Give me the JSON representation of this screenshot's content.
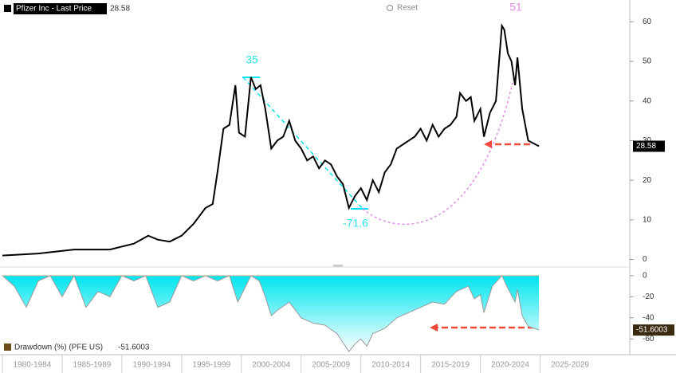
{
  "controls": {
    "reset": "Reset"
  },
  "chart_data": [
    {
      "type": "line",
      "x": [
        1980,
        1983,
        1986,
        1989,
        1991,
        1992.2,
        1993,
        1994,
        1995,
        1996,
        1997,
        1997.6,
        1998,
        1998.5,
        1999,
        1999.5,
        1999.8,
        2000.3,
        2000.8,
        2001.2,
        2001.6,
        2002,
        2002.5,
        2003,
        2003.5,
        2004,
        2004.5,
        2005,
        2005.5,
        2006,
        2006.5,
        2007,
        2007.5,
        2008,
        2008.5,
        2009,
        2009.5,
        2010,
        2010.5,
        2011,
        2011.5,
        2012,
        2012.5,
        2013,
        2013.5,
        2014,
        2014.5,
        2015,
        2015.5,
        2016,
        2016.5,
        2017,
        2017.5,
        2018,
        2018.3,
        2018.8,
        2019.2,
        2019.5,
        2020,
        2020.3,
        2020.8,
        2021.3,
        2021.8,
        2022,
        2022.3,
        2022.6,
        2022.9,
        2023.1,
        2023.5,
        2024,
        2024.9
      ],
      "series": [
        {
          "name": "Pfizer Inc - Last Price",
          "color": "#000000",
          "values": [
            1,
            1.5,
            2.5,
            2.5,
            4,
            6,
            5,
            4.5,
            6,
            9,
            13,
            14,
            22,
            33,
            34,
            44,
            32,
            31,
            46,
            43,
            44,
            38,
            28,
            30,
            31,
            35,
            30,
            28,
            25,
            26,
            23,
            25,
            24,
            21,
            19,
            13,
            16,
            18,
            15,
            20,
            17,
            22,
            24,
            28,
            29,
            30,
            31,
            33,
            30,
            34,
            31,
            33,
            34,
            36,
            42,
            40,
            41,
            35,
            38,
            31,
            37,
            40,
            59,
            58,
            52,
            50,
            44,
            51,
            38,
            30,
            28.58
          ]
        }
      ],
      "xlim": [
        1979.8,
        2032.5
      ],
      "ylim": [
        -1.5,
        65.5
      ],
      "yticks": [
        0,
        10,
        20,
        30,
        40,
        50,
        60
      ],
      "annotations": [
        "35",
        "-71.6",
        "51"
      ]
    },
    {
      "type": "area",
      "x": [
        1980,
        1981,
        1982,
        1983,
        1984,
        1985,
        1986,
        1987,
        1988,
        1989,
        1990,
        1991,
        1992,
        1993,
        1994,
        1995,
        1996,
        1997,
        1998,
        1999,
        1999.7,
        2000.8,
        2001.5,
        2002,
        2002.5,
        2003,
        2004,
        2005,
        2006,
        2007,
        2008,
        2009,
        2009.5,
        2010,
        2010.5,
        2011,
        2012,
        2013,
        2014,
        2015,
        2016,
        2017,
        2018,
        2019,
        2019.5,
        2020,
        2020.3,
        2021,
        2021.8,
        2022.3,
        2022.9,
        2023.1,
        2023.5,
        2024,
        2024.9
      ],
      "series": [
        {
          "name": "Drawdown (%) (PFE US)",
          "color": "#00e5ee",
          "values": [
            0,
            -10,
            -30,
            -5,
            0,
            -20,
            0,
            -30,
            -15,
            -20,
            0,
            -5,
            0,
            -30,
            -25,
            0,
            -5,
            0,
            -5,
            0,
            -25,
            0,
            -5,
            -20,
            -38,
            -33,
            -25,
            -40,
            -45,
            -47,
            -55,
            -72,
            -65,
            -60,
            -67,
            -55,
            -50,
            -40,
            -35,
            -30,
            -25,
            -27,
            -15,
            -10,
            -22,
            -18,
            -35,
            -10,
            0,
            -12,
            -25,
            -13,
            -38,
            -48,
            -51.6003
          ]
        }
      ],
      "xlim": [
        1979.8,
        2032.5
      ],
      "ylim": [
        -75,
        6
      ],
      "yticks": [
        0,
        -20,
        -40,
        -60
      ],
      "xticks": [
        {
          "value": 1980,
          "label": "1980-1984"
        },
        {
          "value": 1985,
          "label": "1985-1989"
        },
        {
          "value": 1990,
          "label": "1990-1994"
        },
        {
          "value": 1995,
          "label": "1995-1999"
        },
        {
          "value": 2000,
          "label": "2000-2004"
        },
        {
          "value": 2005,
          "label": "2005-2009"
        },
        {
          "value": 2010,
          "label": "2010-2014"
        },
        {
          "value": 2015,
          "label": "2015-2019"
        },
        {
          "value": 2020,
          "label": "2020-2024"
        },
        {
          "value": 2025,
          "label": "2025-2029"
        }
      ]
    }
  ]
}
